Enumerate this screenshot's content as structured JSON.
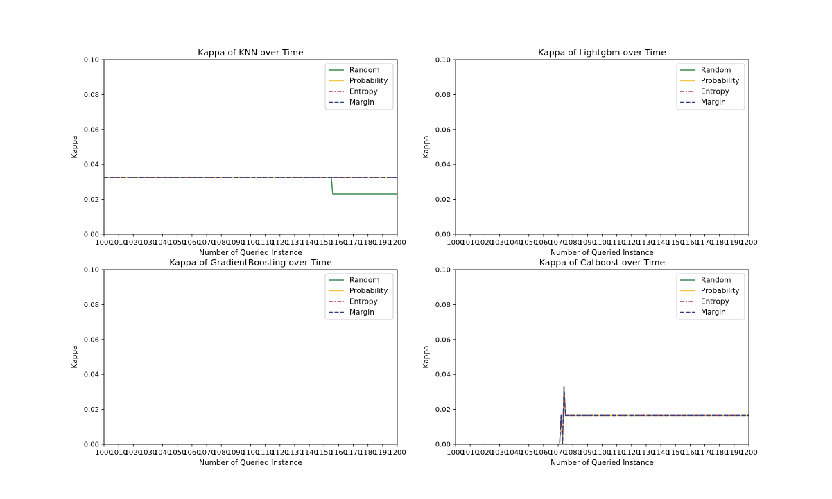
{
  "figure": {
    "xlabel": "Number of Queried Instance",
    "ylabel": "Kappa"
  },
  "chart_data": [
    {
      "type": "line",
      "title": "Kappa of KNN over Time",
      "xlabel": "Number of Queried Instance",
      "ylabel": "Kappa",
      "xlim": [
        1000,
        1200
      ],
      "ylim": [
        0.0,
        0.1
      ],
      "xticks": [
        "1000",
        "1010",
        "1020",
        "1030",
        "1040",
        "1050",
        "1060",
        "1070",
        "1080",
        "1090",
        "1100",
        "1110",
        "1120",
        "1130",
        "1140",
        "1150",
        "1160",
        "1170",
        "1180",
        "1190",
        "1200"
      ],
      "yticks": [
        "0.00",
        "0.02",
        "0.04",
        "0.06",
        "0.08",
        "0.10"
      ],
      "grid": false,
      "legend": "top-right",
      "series": [
        {
          "name": "Random",
          "color": "#3a8a4f",
          "dash": "solid",
          "x": [
            1000,
            1155,
            1156,
            1200
          ],
          "y": [
            0.0325,
            0.0325,
            0.023,
            0.023
          ]
        },
        {
          "name": "Probability",
          "color": "#f5c842",
          "dash": "solid",
          "x": [
            1000,
            1200
          ],
          "y": [
            0.0325,
            0.0325
          ]
        },
        {
          "name": "Entropy",
          "color": "#b23b3b",
          "dash": "dashdot",
          "x": [
            1000,
            1200
          ],
          "y": [
            0.0325,
            0.0325
          ]
        },
        {
          "name": "Margin",
          "color": "#2e3f7f",
          "dash": "dashed",
          "x": [
            1000,
            1200
          ],
          "y": [
            0.0325,
            0.0325
          ]
        }
      ]
    },
    {
      "type": "line",
      "title": "Kappa of Lightgbm over Time",
      "xlabel": "Number of Queried Instance",
      "ylabel": "Kappa",
      "xlim": [
        1000,
        1200
      ],
      "ylim": [
        0.0,
        0.1
      ],
      "xticks": [
        "1000",
        "1010",
        "1020",
        "1030",
        "1040",
        "1050",
        "1060",
        "1070",
        "1080",
        "1090",
        "1100",
        "1110",
        "1120",
        "1130",
        "1140",
        "1150",
        "1160",
        "1170",
        "1180",
        "1190",
        "1200"
      ],
      "yticks": [
        "0.00",
        "0.02",
        "0.04",
        "0.06",
        "0.08",
        "0.10"
      ],
      "grid": false,
      "legend": "top-right",
      "series": [
        {
          "name": "Random",
          "color": "#3a8a4f",
          "dash": "solid",
          "x": [
            1000,
            1200
          ],
          "y": [
            0.0,
            0.0
          ]
        },
        {
          "name": "Probability",
          "color": "#f5c842",
          "dash": "solid",
          "x": [
            1000,
            1200
          ],
          "y": [
            0.0,
            0.0
          ]
        },
        {
          "name": "Entropy",
          "color": "#b23b3b",
          "dash": "dashdot",
          "x": [
            1000,
            1200
          ],
          "y": [
            0.0,
            0.0
          ]
        },
        {
          "name": "Margin",
          "color": "#2e3f7f",
          "dash": "dashed",
          "x": [
            1000,
            1200
          ],
          "y": [
            0.0,
            0.0
          ]
        }
      ]
    },
    {
      "type": "line",
      "title": "Kappa of GradientBoosting over Time",
      "xlabel": "Number of Queried Instance",
      "ylabel": "Kappa",
      "xlim": [
        1000,
        1200
      ],
      "ylim": [
        0.0,
        0.1
      ],
      "xticks": [
        "1000",
        "1010",
        "1020",
        "1030",
        "1040",
        "1050",
        "1060",
        "1070",
        "1080",
        "1090",
        "1100",
        "1110",
        "1120",
        "1130",
        "1140",
        "1150",
        "1160",
        "1170",
        "1180",
        "1190",
        "1200"
      ],
      "yticks": [
        "0.00",
        "0.02",
        "0.04",
        "0.06",
        "0.08",
        "0.10"
      ],
      "grid": false,
      "legend": "top-right",
      "series": [
        {
          "name": "Random",
          "color": "#3a8a4f",
          "dash": "solid",
          "x": [
            1000,
            1200
          ],
          "y": [
            0.0,
            0.0
          ]
        },
        {
          "name": "Probability",
          "color": "#f5c842",
          "dash": "solid",
          "x": [
            1000,
            1200
          ],
          "y": [
            0.0,
            0.0
          ]
        },
        {
          "name": "Entropy",
          "color": "#b23b3b",
          "dash": "dashdot",
          "x": [
            1000,
            1200
          ],
          "y": [
            0.0,
            0.0
          ]
        },
        {
          "name": "Margin",
          "color": "#2e3f7f",
          "dash": "dashed",
          "x": [
            1000,
            1200
          ],
          "y": [
            0.0,
            0.0
          ]
        }
      ]
    },
    {
      "type": "line",
      "title": "Kappa of Catboost over Time",
      "xlabel": "Number of Queried Instance",
      "ylabel": "Kappa",
      "xlim": [
        1000,
        1200
      ],
      "ylim": [
        0.0,
        0.1
      ],
      "xticks": [
        "1000",
        "1010",
        "1020",
        "1030",
        "1040",
        "1050",
        "1060",
        "1070",
        "1080",
        "1090",
        "1100",
        "1110",
        "1120",
        "1130",
        "1140",
        "1150",
        "1160",
        "1170",
        "1180",
        "1190",
        "1200"
      ],
      "yticks": [
        "0.00",
        "0.02",
        "0.04",
        "0.06",
        "0.08",
        "0.10"
      ],
      "grid": false,
      "legend": "top-right",
      "series": [
        {
          "name": "Random",
          "color": "#3a8a4f",
          "dash": "solid",
          "x": [
            1000,
            1200
          ],
          "y": [
            0.0,
            0.0
          ]
        },
        {
          "name": "Probability",
          "color": "#f5c842",
          "dash": "solid",
          "x": [
            1000,
            1071,
            1072,
            1073,
            1074,
            1075,
            1076,
            1077,
            1200
          ],
          "y": [
            0.0,
            0.0,
            0.0165,
            0.0,
            0.033,
            0.0165,
            0.0165,
            0.0165,
            0.0165
          ]
        },
        {
          "name": "Entropy",
          "color": "#b23b3b",
          "dash": "dashdot",
          "x": [
            1000,
            1071,
            1072,
            1073,
            1074,
            1075,
            1076,
            1077,
            1200
          ],
          "y": [
            0.0,
            0.0,
            0.0165,
            0.0,
            0.033,
            0.0165,
            0.0165,
            0.0165,
            0.0165
          ]
        },
        {
          "name": "Margin",
          "color": "#2e3f7f",
          "dash": "dashed",
          "x": [
            1000,
            1071,
            1072,
            1073,
            1074,
            1075,
            1076,
            1077,
            1200
          ],
          "y": [
            0.0,
            0.0,
            0.0165,
            0.0,
            0.033,
            0.0165,
            0.0165,
            0.0165,
            0.0165
          ]
        }
      ]
    }
  ]
}
